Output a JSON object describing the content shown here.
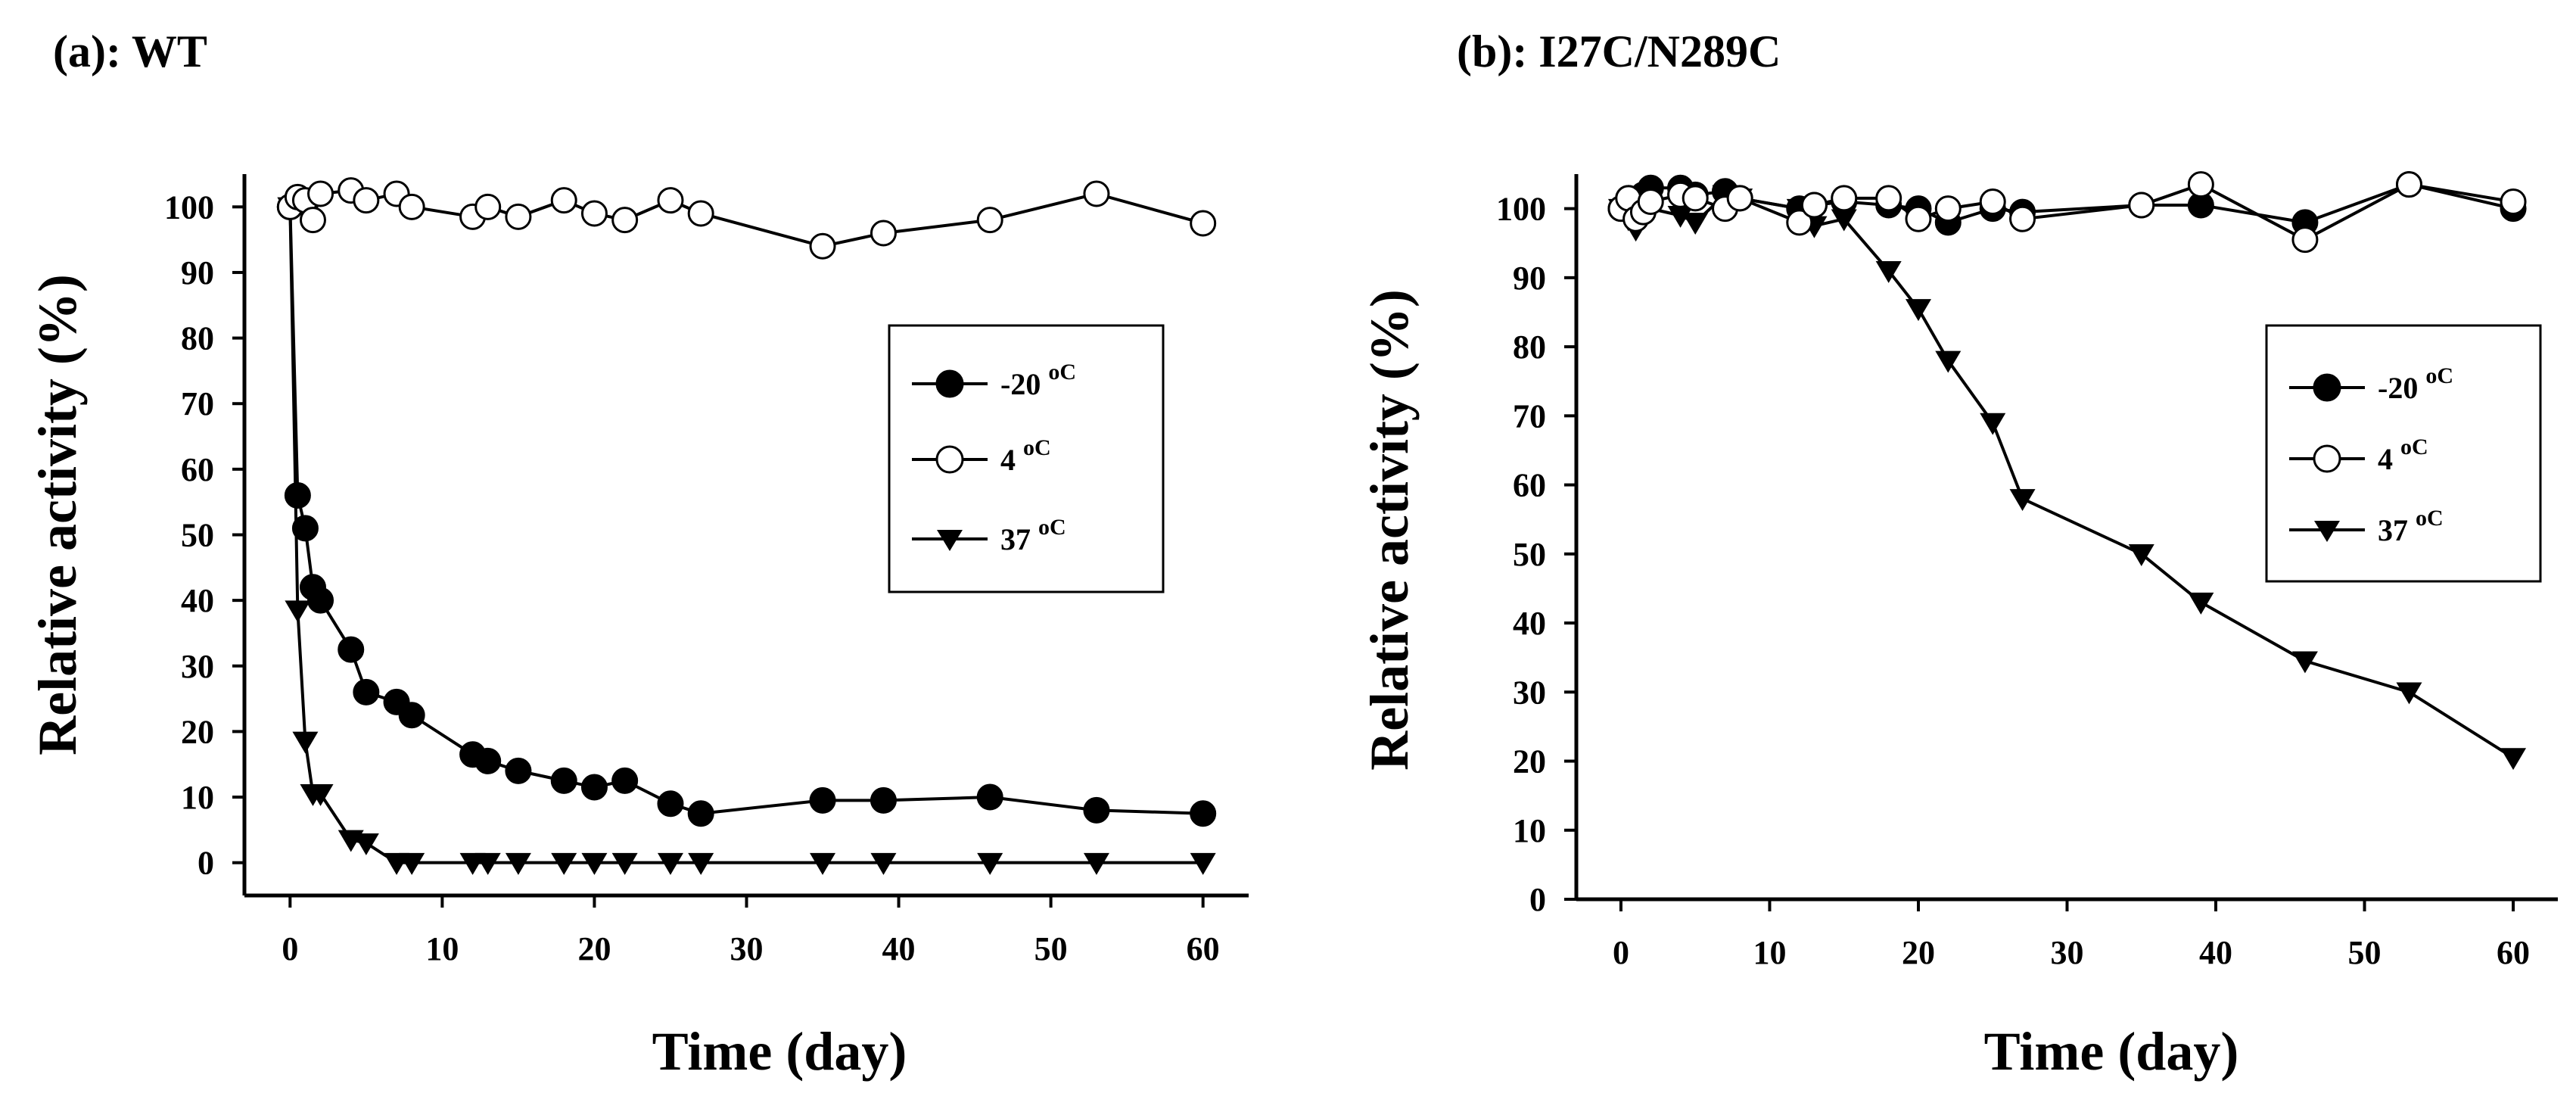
{
  "colors": {
    "background": "#ffffff",
    "ink": "#000000",
    "open_marker_fill": "#ffffff"
  },
  "chart_data": [
    {
      "type": "line",
      "title": "(a): WT",
      "xlabel": "Time (day)",
      "ylabel": "Relative activity (%)",
      "xlim": [
        -3,
        63
      ],
      "ylim": [
        -5,
        105
      ],
      "xticks": [
        0,
        10,
        20,
        30,
        40,
        50,
        60
      ],
      "yticks": [
        0,
        10,
        20,
        30,
        40,
        50,
        60,
        70,
        80,
        90,
        100
      ],
      "xtick_labels": [
        "0",
        "10",
        "20",
        "30",
        "40",
        "50",
        "60"
      ],
      "ytick_labels": [
        "0",
        "10",
        "20",
        "30",
        "40",
        "50",
        "60",
        "70",
        "80",
        "90",
        "100"
      ],
      "grid": false,
      "legend_position": "center-right",
      "series": [
        {
          "name": "-20",
          "unit": "oC",
          "marker": "filled-circle",
          "x": [
            0,
            0.5,
            1,
            1.5,
            2,
            4,
            5,
            7,
            8,
            12,
            13,
            15,
            18,
            20,
            22,
            25,
            27,
            35,
            39,
            46,
            53,
            60
          ],
          "values": [
            100,
            56,
            51,
            42,
            40,
            32.5,
            26,
            24.5,
            22.5,
            16.5,
            15.5,
            14,
            12.5,
            11.5,
            12.5,
            9,
            7.5,
            9.5,
            9.5,
            10,
            8,
            7.5
          ]
        },
        {
          "name": "4",
          "unit": "oC",
          "marker": "open-circle",
          "x": [
            0,
            0.5,
            1,
            1.5,
            2,
            4,
            5,
            7,
            8,
            12,
            13,
            15,
            18,
            20,
            22,
            25,
            27,
            35,
            39,
            46,
            53,
            60
          ],
          "values": [
            100,
            101.5,
            101,
            98,
            102,
            102.5,
            101,
            102,
            100,
            98.5,
            100,
            98.5,
            101,
            99,
            98,
            101,
            99,
            94,
            96,
            98,
            102,
            97.5
          ]
        },
        {
          "name": "37",
          "unit": "oC",
          "marker": "filled-triangle-down",
          "x": [
            0,
            0.5,
            1,
            1.5,
            2,
            4,
            5,
            7,
            8,
            12,
            13,
            15,
            18,
            20,
            22,
            25,
            27,
            35,
            39,
            46,
            53,
            60
          ],
          "values": [
            100,
            38.5,
            18.5,
            10.5,
            10.5,
            3.5,
            3,
            0,
            0,
            0,
            0,
            0,
            0,
            0,
            0,
            0,
            0,
            0,
            0,
            0,
            0,
            0
          ]
        }
      ]
    },
    {
      "type": "line",
      "title": "(b): I27C/N289C",
      "xlabel": "Time (day)",
      "ylabel": "Relative activity (%)",
      "xlim": [
        -3,
        63
      ],
      "ylim": [
        0,
        105
      ],
      "xticks": [
        0,
        10,
        20,
        30,
        40,
        50,
        60
      ],
      "yticks": [
        0,
        10,
        20,
        30,
        40,
        50,
        60,
        70,
        80,
        90,
        100
      ],
      "xtick_labels": [
        "0",
        "10",
        "20",
        "30",
        "40",
        "50",
        "60"
      ],
      "ytick_labels": [
        "0",
        "10",
        "20",
        "30",
        "40",
        "50",
        "60",
        "70",
        "80",
        "90",
        "100"
      ],
      "grid": false,
      "legend_position": "center-right",
      "series": [
        {
          "name": "-20",
          "unit": "oC",
          "marker": "filled-circle",
          "x": [
            0,
            0.5,
            1,
            1.5,
            2,
            4,
            5,
            7,
            8,
            12,
            13,
            15,
            18,
            20,
            22,
            25,
            27,
            35,
            39,
            46,
            53,
            60
          ],
          "values": [
            100,
            101.5,
            100,
            102,
            103,
            103,
            102,
            102.5,
            101.5,
            100,
            100.5,
            101,
            100.5,
            100,
            98,
            100,
            99.5,
            100.5,
            100.5,
            98,
            103.5,
            100
          ]
        },
        {
          "name": "4",
          "unit": "oC",
          "marker": "open-circle",
          "x": [
            0,
            0.5,
            1,
            1.5,
            2,
            4,
            5,
            7,
            8,
            12,
            13,
            15,
            18,
            20,
            22,
            25,
            27,
            35,
            39,
            46,
            53,
            60
          ],
          "values": [
            100,
            101.5,
            98.5,
            99.5,
            101,
            102,
            101.5,
            100,
            101.5,
            98,
            100.5,
            101.5,
            101.5,
            98.5,
            100,
            101,
            98.5,
            100.5,
            103.5,
            95.5,
            103.5,
            101
          ]
        },
        {
          "name": "37",
          "unit": "oC",
          "marker": "filled-triangle-down",
          "x": [
            0,
            0.5,
            1,
            1.5,
            2,
            4,
            5,
            7,
            8,
            12,
            13,
            15,
            18,
            20,
            22,
            25,
            27,
            35,
            39,
            46,
            53,
            60
          ],
          "values": [
            100,
            98.5,
            97,
            101.5,
            100,
            99,
            98,
            102,
            101.5,
            100,
            97.5,
            98.5,
            91,
            85.5,
            78,
            69,
            58,
            50,
            43,
            34.5,
            30,
            20.5
          ]
        }
      ]
    }
  ]
}
